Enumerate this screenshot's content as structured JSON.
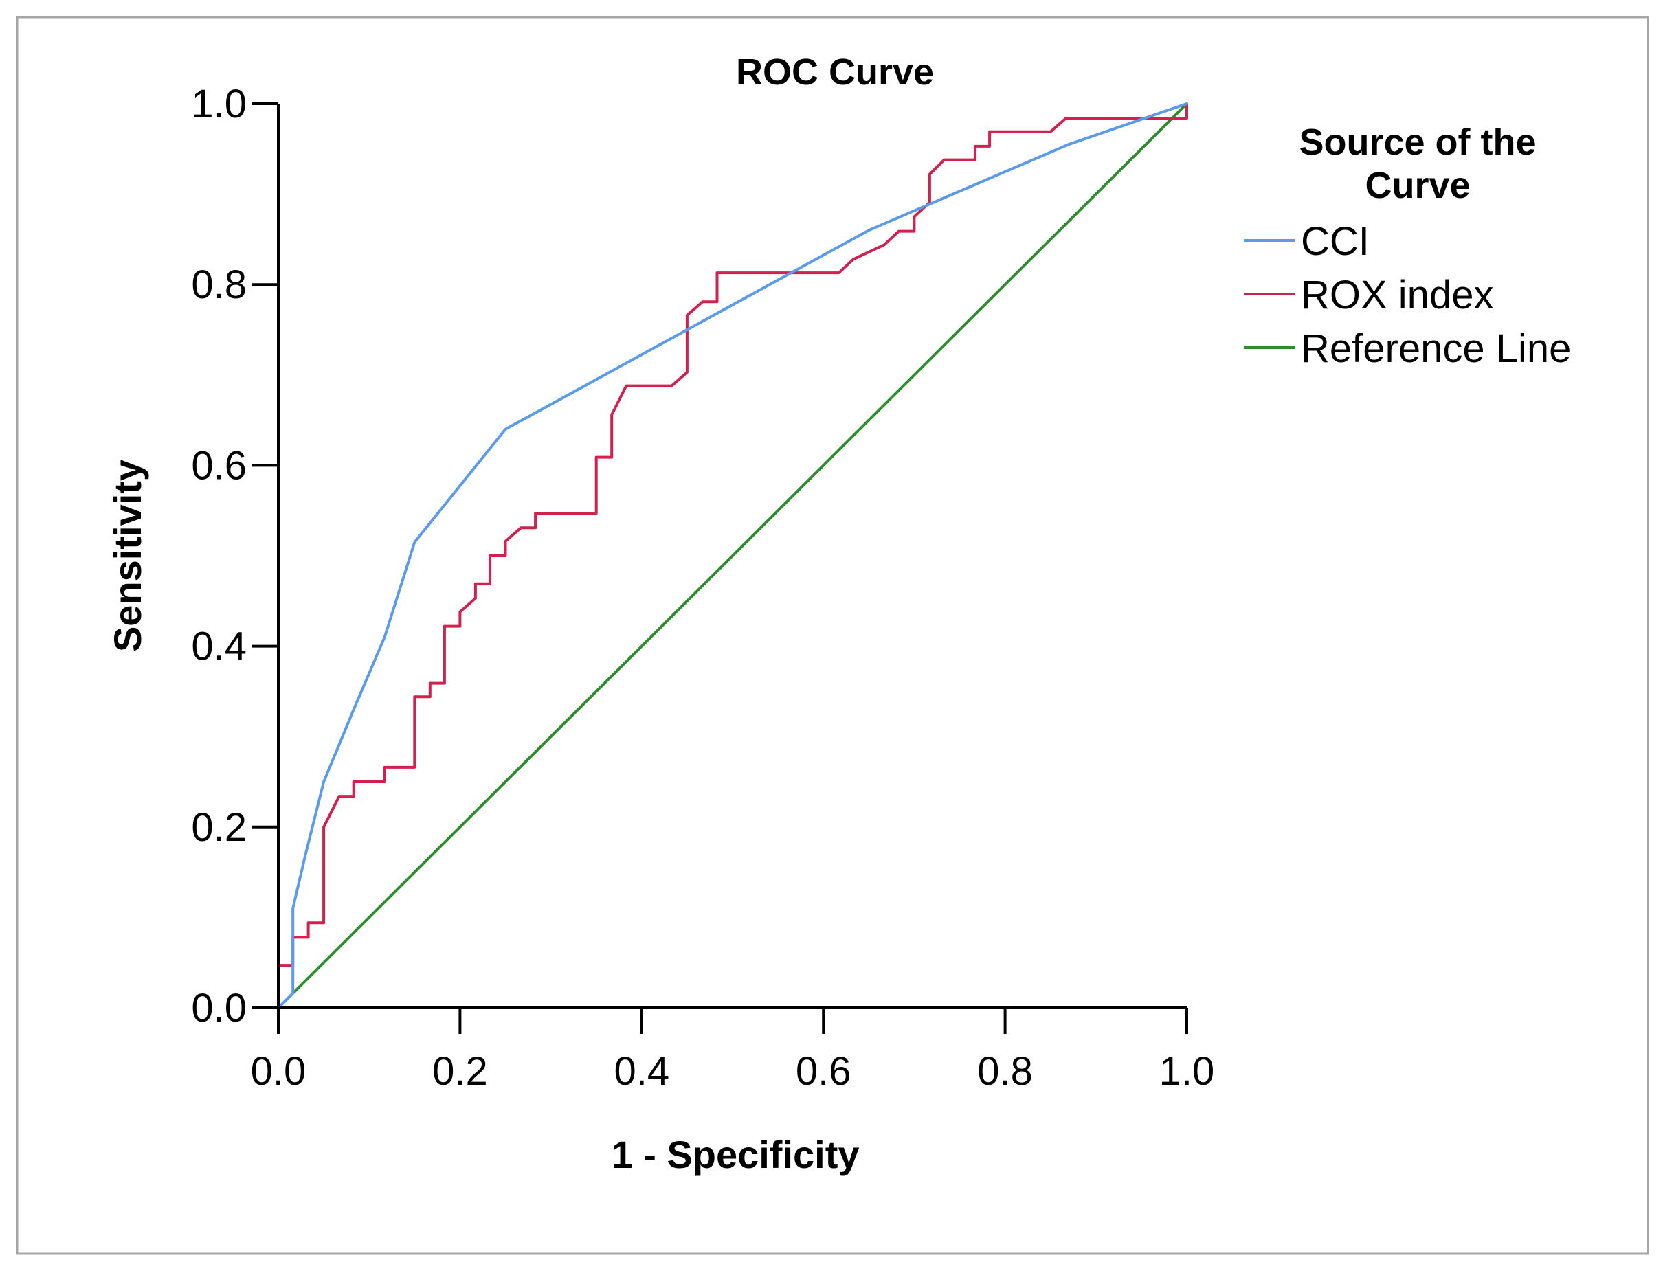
{
  "chart_data": {
    "type": "line",
    "title": "ROC Curve",
    "xlabel": "1 - Specificity",
    "ylabel": "Sensitivity",
    "xlim": [
      0,
      1
    ],
    "ylim": [
      0,
      1
    ],
    "x_ticks": [
      "0.0",
      "0.2",
      "0.4",
      "0.6",
      "0.8",
      "1.0"
    ],
    "y_ticks": [
      "0.0",
      "0.2",
      "0.4",
      "0.6",
      "0.8",
      "1.0"
    ],
    "grid": false,
    "legend": {
      "title": "Source of the Curve",
      "title_lines": [
        "Source of the",
        "Curve"
      ],
      "placement": "right"
    },
    "series": [
      {
        "name": "CCI",
        "color": "#5b9bea",
        "points": [
          [
            0.0,
            0.0
          ],
          [
            0.016,
            0.016
          ],
          [
            0.016,
            0.11
          ],
          [
            0.03,
            0.17
          ],
          [
            0.05,
            0.25
          ],
          [
            0.083,
            0.33
          ],
          [
            0.117,
            0.41
          ],
          [
            0.15,
            0.515
          ],
          [
            0.25,
            0.64
          ],
          [
            0.45,
            0.75
          ],
          [
            0.65,
            0.86
          ],
          [
            0.87,
            0.955
          ],
          [
            1.0,
            1.0
          ]
        ]
      },
      {
        "name": "ROX index",
        "color": "#d0214f",
        "points": [
          [
            0.0,
            0.047
          ],
          [
            0.016,
            0.047
          ],
          [
            0.016,
            0.078
          ],
          [
            0.033,
            0.078
          ],
          [
            0.033,
            0.094
          ],
          [
            0.05,
            0.094
          ],
          [
            0.05,
            0.2
          ],
          [
            0.067,
            0.234
          ],
          [
            0.083,
            0.234
          ],
          [
            0.083,
            0.25
          ],
          [
            0.117,
            0.25
          ],
          [
            0.117,
            0.266
          ],
          [
            0.15,
            0.266
          ],
          [
            0.15,
            0.344
          ],
          [
            0.167,
            0.344
          ],
          [
            0.167,
            0.359
          ],
          [
            0.183,
            0.359
          ],
          [
            0.183,
            0.422
          ],
          [
            0.2,
            0.422
          ],
          [
            0.2,
            0.438
          ],
          [
            0.217,
            0.453
          ],
          [
            0.217,
            0.469
          ],
          [
            0.233,
            0.469
          ],
          [
            0.233,
            0.5
          ],
          [
            0.25,
            0.5
          ],
          [
            0.25,
            0.516
          ],
          [
            0.267,
            0.531
          ],
          [
            0.283,
            0.531
          ],
          [
            0.283,
            0.547
          ],
          [
            0.35,
            0.547
          ],
          [
            0.35,
            0.609
          ],
          [
            0.367,
            0.609
          ],
          [
            0.367,
            0.656
          ],
          [
            0.383,
            0.688
          ],
          [
            0.433,
            0.688
          ],
          [
            0.45,
            0.703
          ],
          [
            0.45,
            0.766
          ],
          [
            0.467,
            0.781
          ],
          [
            0.483,
            0.781
          ],
          [
            0.483,
            0.813
          ],
          [
            0.617,
            0.813
          ],
          [
            0.633,
            0.828
          ],
          [
            0.667,
            0.844
          ],
          [
            0.683,
            0.859
          ],
          [
            0.7,
            0.859
          ],
          [
            0.7,
            0.875
          ],
          [
            0.717,
            0.891
          ],
          [
            0.717,
            0.922
          ],
          [
            0.733,
            0.938
          ],
          [
            0.767,
            0.938
          ],
          [
            0.767,
            0.953
          ],
          [
            0.783,
            0.953
          ],
          [
            0.783,
            0.969
          ],
          [
            0.85,
            0.969
          ],
          [
            0.867,
            0.984
          ],
          [
            1.0,
            0.984
          ],
          [
            1.0,
            1.0
          ]
        ]
      },
      {
        "name": "Reference Line",
        "color": "#2e8b2e",
        "points": [
          [
            0.0,
            0.0
          ],
          [
            1.0,
            1.0
          ]
        ]
      }
    ]
  }
}
